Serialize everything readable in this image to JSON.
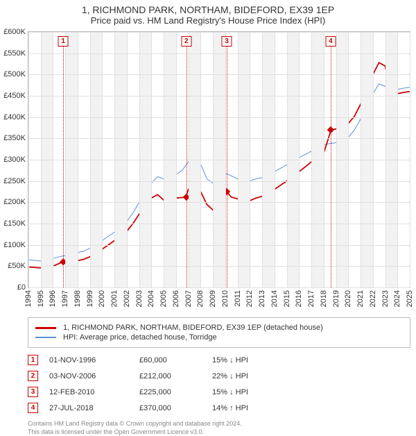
{
  "title": "1, RICHMOND PARK, NORTHAM, BIDEFORD, EX39 1EP",
  "subtitle": "Price paid vs. HM Land Registry's House Price Index (HPI)",
  "chart": {
    "type": "line",
    "x_start_year": 1994,
    "x_end_year": 2025,
    "y_min": 0,
    "y_max": 600000,
    "y_tick_step": 50000,
    "y_tick_labels": [
      "£0",
      "£50K",
      "£100K",
      "£150K",
      "£200K",
      "£250K",
      "£300K",
      "£350K",
      "£400K",
      "£450K",
      "£500K",
      "£550K",
      "£600K"
    ],
    "background_color": "#ffffff",
    "band_color": "#f2f2f2",
    "grid_color": "#e0e0e0",
    "series": {
      "hpi": {
        "color": "#5b8fd6",
        "width": 1,
        "label": "HPI: Average price, detached house, Torridge",
        "points": [
          [
            1994.0,
            65000
          ],
          [
            1995.0,
            62000
          ],
          [
            1995.5,
            70000
          ],
          [
            1996.0,
            68000
          ],
          [
            1996.5,
            72000
          ],
          [
            1997.0,
            75000
          ],
          [
            1997.5,
            78000
          ],
          [
            1998.0,
            82000
          ],
          [
            1998.5,
            85000
          ],
          [
            1999.0,
            92000
          ],
          [
            1999.5,
            100000
          ],
          [
            2000.0,
            110000
          ],
          [
            2000.5,
            120000
          ],
          [
            2001.0,
            130000
          ],
          [
            2001.5,
            140000
          ],
          [
            2002.0,
            155000
          ],
          [
            2002.5,
            175000
          ],
          [
            2003.0,
            200000
          ],
          [
            2003.5,
            220000
          ],
          [
            2004.0,
            245000
          ],
          [
            2004.5,
            260000
          ],
          [
            2005.0,
            255000
          ],
          [
            2005.5,
            250000
          ],
          [
            2006.0,
            265000
          ],
          [
            2006.5,
            275000
          ],
          [
            2007.0,
            295000
          ],
          [
            2007.5,
            308000
          ],
          [
            2008.0,
            290000
          ],
          [
            2008.5,
            255000
          ],
          [
            2009.0,
            245000
          ],
          [
            2009.5,
            260000
          ],
          [
            2010.0,
            268000
          ],
          [
            2010.5,
            262000
          ],
          [
            2011.0,
            255000
          ],
          [
            2011.5,
            252000
          ],
          [
            2012.0,
            250000
          ],
          [
            2012.5,
            255000
          ],
          [
            2013.0,
            258000
          ],
          [
            2013.5,
            264000
          ],
          [
            2014.0,
            272000
          ],
          [
            2014.5,
            280000
          ],
          [
            2015.0,
            288000
          ],
          [
            2015.5,
            296000
          ],
          [
            2016.0,
            305000
          ],
          [
            2016.5,
            312000
          ],
          [
            2017.0,
            320000
          ],
          [
            2017.5,
            328000
          ],
          [
            2018.0,
            335000
          ],
          [
            2018.5,
            338000
          ],
          [
            2019.0,
            340000
          ],
          [
            2019.5,
            345000
          ],
          [
            2020.0,
            352000
          ],
          [
            2020.5,
            370000
          ],
          [
            2021.0,
            395000
          ],
          [
            2021.5,
            420000
          ],
          [
            2022.0,
            455000
          ],
          [
            2022.5,
            478000
          ],
          [
            2023.0,
            472000
          ],
          [
            2023.5,
            462000
          ],
          [
            2024.0,
            465000
          ],
          [
            2024.5,
            468000
          ],
          [
            2025.0,
            470000
          ]
        ]
      },
      "price_paid": {
        "color": "#cc0000",
        "width": 1.8,
        "label": "1, RICHMOND PARK, NORTHAM, BIDEFORD, EX39 1EP (detached house)",
        "points": [
          [
            1994.0,
            48000
          ],
          [
            1995.0,
            46000
          ],
          [
            1995.5,
            52000
          ],
          [
            1996.0,
            50000
          ],
          [
            1996.8,
            60000
          ],
          [
            1997.5,
            60000
          ],
          [
            1998.0,
            63000
          ],
          [
            1998.5,
            66000
          ],
          [
            1999.0,
            72000
          ],
          [
            1999.5,
            80000
          ],
          [
            2000.0,
            90000
          ],
          [
            2000.5,
            100000
          ],
          [
            2001.0,
            110000
          ],
          [
            2001.5,
            118000
          ],
          [
            2002.0,
            132000
          ],
          [
            2002.5,
            150000
          ],
          [
            2003.0,
            172000
          ],
          [
            2003.5,
            190000
          ],
          [
            2004.0,
            210000
          ],
          [
            2004.5,
            218000
          ],
          [
            2005.0,
            205000
          ],
          [
            2005.5,
            198000
          ],
          [
            2006.0,
            210000
          ],
          [
            2006.8,
            212000
          ],
          [
            2007.0,
            230000
          ],
          [
            2007.5,
            240000
          ],
          [
            2008.0,
            225000
          ],
          [
            2008.5,
            195000
          ],
          [
            2009.0,
            182000
          ],
          [
            2009.5,
            205000
          ],
          [
            2010.1,
            225000
          ],
          [
            2010.5,
            212000
          ],
          [
            2011.0,
            208000
          ],
          [
            2011.5,
            206000
          ],
          [
            2012.0,
            204000
          ],
          [
            2012.5,
            210000
          ],
          [
            2013.0,
            214000
          ],
          [
            2013.5,
            222000
          ],
          [
            2014.0,
            230000
          ],
          [
            2014.5,
            240000
          ],
          [
            2015.0,
            250000
          ],
          [
            2015.5,
            260000
          ],
          [
            2016.0,
            272000
          ],
          [
            2016.5,
            283000
          ],
          [
            2017.0,
            295000
          ],
          [
            2017.5,
            305000
          ],
          [
            2018.0,
            315000
          ],
          [
            2018.6,
            370000
          ],
          [
            2019.0,
            372000
          ],
          [
            2019.5,
            378000
          ],
          [
            2020.0,
            385000
          ],
          [
            2020.5,
            402000
          ],
          [
            2021.0,
            430000
          ],
          [
            2021.5,
            460000
          ],
          [
            2022.0,
            500000
          ],
          [
            2022.5,
            528000
          ],
          [
            2023.0,
            520000
          ],
          [
            2023.5,
            450000
          ],
          [
            2024.0,
            455000
          ],
          [
            2024.5,
            458000
          ],
          [
            2025.0,
            460000
          ]
        ]
      }
    },
    "markers": [
      {
        "year": 1996.83,
        "value": 60000
      },
      {
        "year": 2006.84,
        "value": 212000
      },
      {
        "year": 2010.12,
        "value": 225000
      },
      {
        "year": 2018.57,
        "value": 370000
      }
    ]
  },
  "events": [
    {
      "num": "1",
      "date": "01-NOV-1996",
      "price": "£60,000",
      "diff": "15% ↓ HPI"
    },
    {
      "num": "2",
      "date": "03-NOV-2006",
      "price": "£212,000",
      "diff": "22% ↓ HPI"
    },
    {
      "num": "3",
      "date": "12-FEB-2010",
      "price": "£225,000",
      "diff": "15% ↓ HPI"
    },
    {
      "num": "4",
      "date": "27-JUL-2018",
      "price": "£370,000",
      "diff": "14% ↑ HPI"
    }
  ],
  "credit": {
    "line1": "Contains HM Land Registry data © Crown copyright and database right 2024.",
    "line2": "This data is licensed under the Open Government Licence v3.0."
  }
}
